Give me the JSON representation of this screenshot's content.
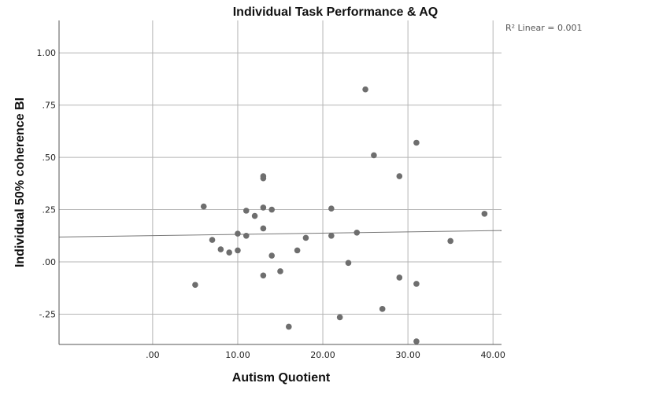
{
  "chart_data": {
    "type": "scatter",
    "title": "Individual Task Performance & AQ",
    "xlabel": "Autism Quotient",
    "ylabel": "Individual 50% coherence BI",
    "xlim": [
      -11,
      41
    ],
    "ylim": [
      -0.395,
      1.155
    ],
    "x_ticks": [
      0,
      10,
      20,
      30,
      40
    ],
    "x_tick_labels": [
      ".00",
      "10.00",
      "20.00",
      "30.00",
      "40.00"
    ],
    "y_ticks": [
      -0.25,
      0,
      0.25,
      0.5,
      0.75,
      1.0
    ],
    "y_tick_labels": [
      "-.25",
      ".00",
      ".25",
      ".50",
      ".75",
      "1.00"
    ],
    "grid": true,
    "annotation": "R² Linear = 0.001",
    "fit_line": {
      "type": "linear",
      "intercept": 0.1255,
      "slope": 0.0006
    },
    "colors": {
      "points": "#6e6e6e",
      "fit_line": "#777777",
      "grid": "#b4b4b4",
      "axis": "#555555"
    },
    "points": [
      {
        "x": 5,
        "y": -0.11
      },
      {
        "x": 6,
        "y": 0.265
      },
      {
        "x": 7,
        "y": 0.105
      },
      {
        "x": 8,
        "y": 0.06
      },
      {
        "x": 9,
        "y": 0.045
      },
      {
        "x": 10,
        "y": 0.135
      },
      {
        "x": 10,
        "y": 0.055
      },
      {
        "x": 11,
        "y": 0.245
      },
      {
        "x": 11,
        "y": 0.125
      },
      {
        "x": 12,
        "y": 0.22
      },
      {
        "x": 13,
        "y": 0.41
      },
      {
        "x": 13,
        "y": 0.4
      },
      {
        "x": 13,
        "y": 0.26
      },
      {
        "x": 13,
        "y": 0.16
      },
      {
        "x": 13,
        "y": -0.065
      },
      {
        "x": 14,
        "y": 0.25
      },
      {
        "x": 14,
        "y": 0.03
      },
      {
        "x": 15,
        "y": -0.045
      },
      {
        "x": 16,
        "y": -0.31
      },
      {
        "x": 17,
        "y": 0.055
      },
      {
        "x": 18,
        "y": 0.115
      },
      {
        "x": 21,
        "y": 0.255
      },
      {
        "x": 21,
        "y": 0.125
      },
      {
        "x": 22,
        "y": -0.265
      },
      {
        "x": 23,
        "y": -0.005
      },
      {
        "x": 24,
        "y": 0.14
      },
      {
        "x": 25,
        "y": 0.825
      },
      {
        "x": 26,
        "y": 0.51
      },
      {
        "x": 27,
        "y": -0.225
      },
      {
        "x": 29,
        "y": 0.41
      },
      {
        "x": 29,
        "y": -0.075
      },
      {
        "x": 31,
        "y": 0.57
      },
      {
        "x": 31,
        "y": -0.105
      },
      {
        "x": 31,
        "y": -0.38
      },
      {
        "x": 35,
        "y": 0.1
      },
      {
        "x": 39,
        "y": 0.23
      }
    ]
  }
}
